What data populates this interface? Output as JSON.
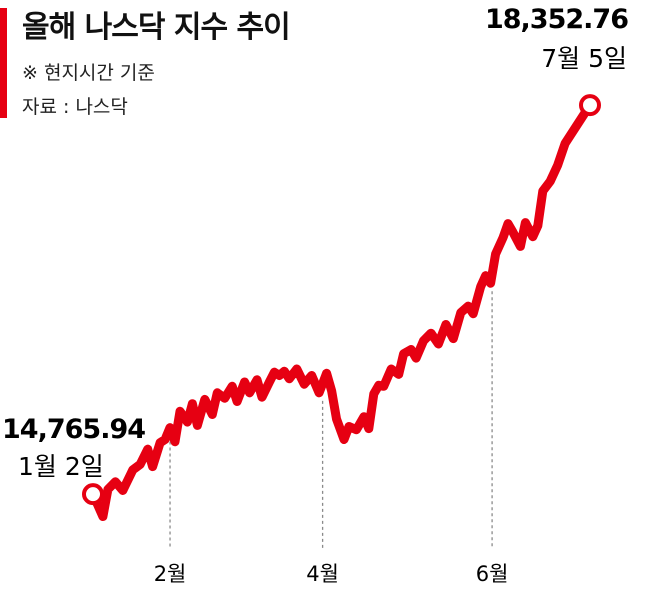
{
  "header": {
    "title": "올해 나스닥 지수 추이",
    "note": "※ 현지시간 기준",
    "source": "자료 : 나스닥"
  },
  "colors": {
    "accent": "#e60012",
    "line": "#e60012",
    "guide": "#8a8a8a"
  },
  "chart_data": {
    "type": "line",
    "title": "올해 나스닥 지수 추이",
    "xlabel": "",
    "ylabel": "",
    "x_range": [
      0,
      1
    ],
    "ylim": [
      14500,
      18400
    ],
    "x_ticks": [
      {
        "label": "2월",
        "x": 0.155
      },
      {
        "label": "4월",
        "x": 0.462
      },
      {
        "label": "6월",
        "x": 0.803
      }
    ],
    "annotations": {
      "start": {
        "value": "14,765.94",
        "date": "1월 2일"
      },
      "end": {
        "value": "18,352.76",
        "date": "7월 5일"
      }
    },
    "series": [
      {
        "x": [
          0,
          0.02,
          0.03,
          0.045,
          0.06,
          0.08,
          0.095,
          0.11,
          0.12,
          0.135,
          0.145,
          0.155,
          0.165,
          0.175,
          0.19,
          0.2,
          0.21,
          0.225,
          0.24,
          0.25,
          0.265,
          0.28,
          0.29,
          0.305,
          0.315,
          0.33,
          0.34,
          0.355,
          0.365,
          0.375,
          0.385,
          0.395,
          0.41,
          0.425,
          0.44,
          0.455,
          0.47,
          0.48,
          0.49,
          0.505,
          0.515,
          0.53,
          0.545,
          0.555,
          0.565,
          0.575,
          0.585,
          0.6,
          0.615,
          0.625,
          0.64,
          0.65,
          0.665,
          0.68,
          0.695,
          0.71,
          0.725,
          0.74,
          0.755,
          0.765,
          0.78,
          0.79,
          0.8,
          0.81,
          0.825,
          0.835,
          0.845,
          0.86,
          0.87,
          0.885,
          0.895,
          0.905,
          0.92,
          0.935,
          0.95,
          1.0
        ],
        "y": [
          14765.94,
          14560,
          14810,
          14880,
          14800,
          14990,
          15040,
          15180,
          15020,
          15240,
          15270,
          15380,
          15250,
          15530,
          15430,
          15600,
          15400,
          15640,
          15500,
          15700,
          15650,
          15760,
          15620,
          15800,
          15700,
          15820,
          15660,
          15800,
          15890,
          15860,
          15900,
          15830,
          15920,
          15780,
          15860,
          15700,
          15880,
          15720,
          15460,
          15270,
          15390,
          15360,
          15480,
          15370,
          15690,
          15770,
          15760,
          15920,
          15870,
          16060,
          16100,
          16020,
          16180,
          16250,
          16150,
          16330,
          16200,
          16440,
          16500,
          16430,
          16680,
          16780,
          16710,
          16980,
          17130,
          17260,
          17180,
          17050,
          17270,
          17140,
          17240,
          17560,
          17650,
          17800,
          18000,
          18352.76
        ]
      }
    ]
  }
}
